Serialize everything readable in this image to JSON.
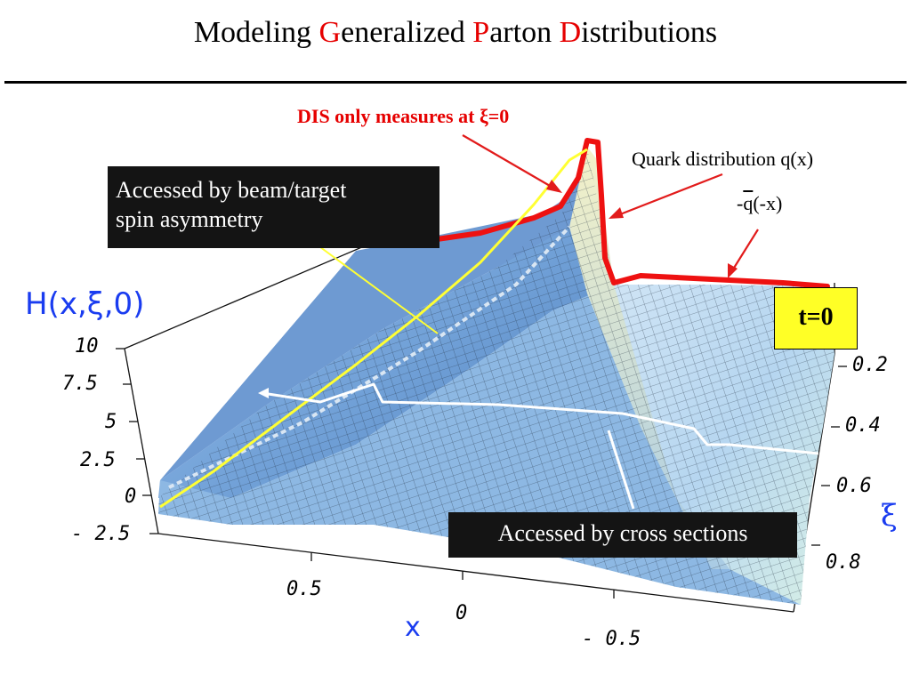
{
  "slide": {
    "title_parts": [
      {
        "text": "Modeling ",
        "red": false
      },
      {
        "text": "G",
        "red": true
      },
      {
        "text": "eneralized ",
        "red": false
      },
      {
        "text": "P",
        "red": true
      },
      {
        "text": "arton ",
        "red": false
      },
      {
        "text": "D",
        "red": true
      },
      {
        "text": "istributions",
        "red": false
      }
    ]
  },
  "annotations": {
    "dis": "DIS only measures at ξ=0",
    "quark": "Quark distribution q(x)",
    "antiquark_prefix": "-",
    "antiquark_bar": "q",
    "antiquark_suffix": "(-x)",
    "spin_line1": "Accessed by beam/target",
    "spin_line2": "spin asymmetry",
    "cross_sections": "Accessed by cross sections",
    "t_value": "t=0"
  },
  "axes": {
    "h_label": "H(x,ξ,0)",
    "h_ticks": [
      "10",
      "7.5",
      "5",
      "2.5",
      "0",
      "- 2.5"
    ],
    "x_label": "x",
    "x_ticks": [
      "0.5",
      "0",
      "- 0.5"
    ],
    "xi_label": "ξ",
    "xi_ticks": [
      "0.2",
      "0.4",
      "0.6",
      "0.8"
    ]
  },
  "colors": {
    "title_accent": "#e60000",
    "surface": "#7fb0e0",
    "dis_curve": "#ee1111",
    "spin_curve": "#ffff33",
    "cross_section_curve": "#ffffff",
    "t_box": "#ffff26",
    "axis_label": "#1a3cf0"
  }
}
